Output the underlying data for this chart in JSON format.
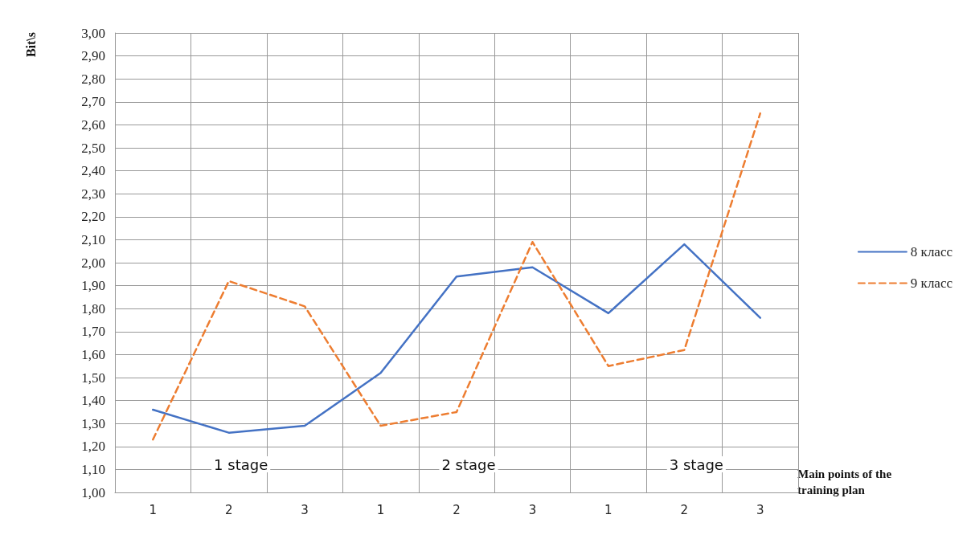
{
  "chart_data": {
    "type": "line",
    "ylabel": "Bit\\s",
    "xlabel": "Main points of the training plan",
    "categories": [
      "1",
      "2",
      "3",
      "1",
      "2",
      "3",
      "1",
      "2",
      "3"
    ],
    "series": [
      {
        "name": "8 класс",
        "color": "#4472c4",
        "line_style": "solid",
        "values": [
          1.36,
          1.26,
          1.29,
          1.52,
          1.94,
          1.98,
          1.78,
          2.08,
          1.76
        ]
      },
      {
        "name": "9 класс",
        "color": "#ed7d31",
        "line_style": "dashed",
        "values": [
          1.23,
          1.92,
          1.81,
          1.29,
          1.35,
          2.09,
          1.55,
          1.62,
          2.65
        ]
      }
    ],
    "annotations": [
      "1 stage",
      "2 stage",
      "3 stage"
    ],
    "ylim": [
      1.0,
      3.0
    ],
    "yticks": [
      {
        "value": 1.0,
        "label": "1,00"
      },
      {
        "value": 1.1,
        "label": "1,10"
      },
      {
        "value": 1.2,
        "label": "1,20"
      },
      {
        "value": 1.3,
        "label": "1,30"
      },
      {
        "value": 1.4,
        "label": "1,40"
      },
      {
        "value": 1.5,
        "label": "1,50"
      },
      {
        "value": 1.6,
        "label": "1,60"
      },
      {
        "value": 1.7,
        "label": "1,70"
      },
      {
        "value": 1.8,
        "label": "1,80"
      },
      {
        "value": 1.9,
        "label": "1,90"
      },
      {
        "value": 2.0,
        "label": "2,00"
      },
      {
        "value": 2.1,
        "label": "2,10"
      },
      {
        "value": 2.2,
        "label": "2,20"
      },
      {
        "value": 2.3,
        "label": "2,30"
      },
      {
        "value": 2.4,
        "label": "2,40"
      },
      {
        "value": 2.5,
        "label": "2,50"
      },
      {
        "value": 2.6,
        "label": "2,60"
      },
      {
        "value": 2.7,
        "label": "2,70"
      },
      {
        "value": 2.8,
        "label": "2,80"
      },
      {
        "value": 2.9,
        "label": "2,90"
      },
      {
        "value": 3.0,
        "label": "3,00"
      }
    ],
    "grid": true,
    "legend": "right",
    "marker": "none"
  }
}
